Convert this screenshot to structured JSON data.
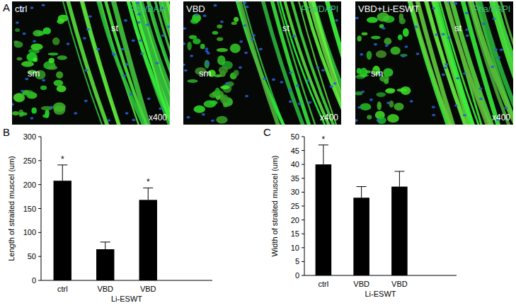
{
  "panel_labels": [
    "A",
    "B",
    "C"
  ],
  "images": [
    {
      "title": "ctrl",
      "stain": "Pha/DAPI",
      "labels": [
        "st",
        "sm"
      ],
      "magnification": "x400"
    },
    {
      "title": "VBD",
      "stain": "Pha/DAPI",
      "labels": [
        "st",
        "sm"
      ],
      "magnification": "x400"
    },
    {
      "title": "VBD+Li-ESWT",
      "stain": "Pha/DAPI",
      "labels": [
        "st",
        "sm"
      ],
      "magnification": "x400"
    }
  ],
  "chart_data": [
    {
      "type": "bar",
      "y_label": "Length of straited muscel (um)",
      "categories": [
        "ctrl",
        "VBD",
        "VBD Li-ESWT"
      ],
      "values": [
        208,
        65,
        168
      ],
      "errors": [
        33,
        15,
        25
      ],
      "significance": [
        "*",
        null,
        "*"
      ],
      "color": "#000000",
      "ylim": [
        0,
        300
      ],
      "yticks": [
        0,
        50,
        100,
        150,
        200,
        250,
        300
      ]
    },
    {
      "type": "bar",
      "y_label": "Width of straited muscel (um)",
      "categories": [
        "ctrl",
        "VBD",
        "VBD Li-ESWT"
      ],
      "values": [
        40,
        28,
        32
      ],
      "errors": [
        7,
        4,
        5.5
      ],
      "significance": [
        "*",
        null,
        null
      ],
      "color": "#000000",
      "ylim": [
        0,
        50
      ],
      "yticks": [
        0,
        5,
        10,
        15,
        20,
        25,
        30,
        35,
        40,
        45,
        50
      ]
    }
  ]
}
